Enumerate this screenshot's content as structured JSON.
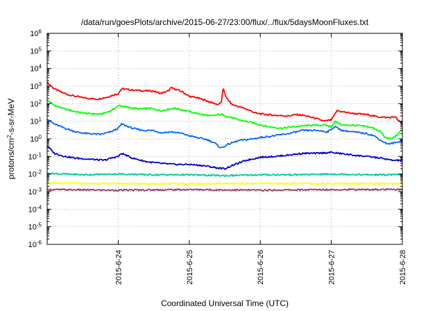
{
  "chart_data": {
    "type": "line",
    "title": "/data/run/goesPlots/archive/2015-06-27/23:00/flux/../flux/5daysMoonFluxes.txt",
    "xlabel": "Coordinated Universal Time (UTC)",
    "ylabel": {
      "base": "protons/cm",
      "sup": "2",
      "rest": "-s-sr-MeV"
    },
    "xlim": [
      0,
      5
    ],
    "x_ticks": [
      {
        "x": 1,
        "label": "2015-6-24"
      },
      {
        "x": 2,
        "label": "2015-6-25"
      },
      {
        "x": 3,
        "label": "2015-6-26"
      },
      {
        "x": 4,
        "label": "2015-6-27"
      },
      {
        "x": 5,
        "label": "2015-6-28"
      }
    ],
    "y_scale": "log",
    "ylim": [
      1e-06,
      1000000.0
    ],
    "y_ticks": [
      {
        "v": 1e-06,
        "base": "10",
        "exp": "-6"
      },
      {
        "v": 1e-05,
        "base": "10",
        "exp": "-5"
      },
      {
        "v": 0.0001,
        "base": "10",
        "exp": "-4"
      },
      {
        "v": 0.001,
        "base": "10",
        "exp": "-3"
      },
      {
        "v": 0.01,
        "base": "10",
        "exp": "-2"
      },
      {
        "v": 0.1,
        "base": "10",
        "exp": "-1"
      },
      {
        "v": 1,
        "base": "10",
        "exp": "0"
      },
      {
        "v": 10,
        "base": "10",
        "exp": "1"
      },
      {
        "v": 100,
        "base": "10",
        "exp": "2"
      },
      {
        "v": 1000,
        "base": "10",
        "exp": "3"
      },
      {
        "v": 10000,
        "base": "10",
        "exp": "4"
      },
      {
        "v": 100000,
        "base": "10",
        "exp": "5"
      },
      {
        "v": 1000000,
        "base": "10",
        "exp": "6"
      }
    ],
    "grid": "dotted",
    "series": [
      {
        "color": "#ff0000",
        "points": [
          [
            0,
            1600
          ],
          [
            0.1,
            700
          ],
          [
            0.2,
            450
          ],
          [
            0.3,
            320
          ],
          [
            0.5,
            220
          ],
          [
            0.7,
            180
          ],
          [
            0.85,
            240
          ],
          [
            1.0,
            380
          ],
          [
            1.05,
            700
          ],
          [
            1.2,
            600
          ],
          [
            1.35,
            540
          ],
          [
            1.5,
            520
          ],
          [
            1.6,
            380
          ],
          [
            1.7,
            520
          ],
          [
            1.75,
            800
          ],
          [
            1.9,
            480
          ],
          [
            2.0,
            260
          ],
          [
            2.1,
            220
          ],
          [
            2.2,
            170
          ],
          [
            2.3,
            120
          ],
          [
            2.4,
            90
          ],
          [
            2.45,
            110
          ],
          [
            2.48,
            800
          ],
          [
            2.52,
            220
          ],
          [
            2.6,
            90
          ],
          [
            2.8,
            50
          ],
          [
            2.95,
            28
          ],
          [
            3.05,
            25
          ],
          [
            3.2,
            22
          ],
          [
            3.4,
            20
          ],
          [
            3.5,
            24
          ],
          [
            3.6,
            22
          ],
          [
            3.8,
            14
          ],
          [
            3.9,
            10
          ],
          [
            4.0,
            12
          ],
          [
            4.08,
            40
          ],
          [
            4.15,
            35
          ],
          [
            4.3,
            28
          ],
          [
            4.5,
            24
          ],
          [
            4.65,
            18
          ],
          [
            4.8,
            16
          ],
          [
            4.9,
            18
          ],
          [
            4.95,
            10
          ],
          [
            5.0,
            8
          ]
        ]
      },
      {
        "color": "#00ff00",
        "points": [
          [
            0,
            160
          ],
          [
            0.1,
            80
          ],
          [
            0.25,
            50
          ],
          [
            0.4,
            35
          ],
          [
            0.55,
            28
          ],
          [
            0.75,
            25
          ],
          [
            0.9,
            40
          ],
          [
            1.02,
            80
          ],
          [
            1.15,
            60
          ],
          [
            1.3,
            50
          ],
          [
            1.45,
            55
          ],
          [
            1.6,
            40
          ],
          [
            1.72,
            50
          ],
          [
            1.8,
            55
          ],
          [
            1.95,
            40
          ],
          [
            2.1,
            28
          ],
          [
            2.3,
            20
          ],
          [
            2.45,
            25
          ],
          [
            2.55,
            18
          ],
          [
            2.7,
            12
          ],
          [
            2.9,
            8
          ],
          [
            3.1,
            5
          ],
          [
            3.3,
            4
          ],
          [
            3.5,
            5
          ],
          [
            3.7,
            6
          ],
          [
            3.9,
            6
          ],
          [
            4.0,
            5
          ],
          [
            4.05,
            10
          ],
          [
            4.15,
            6
          ],
          [
            4.3,
            6
          ],
          [
            4.5,
            5
          ],
          [
            4.6,
            4
          ],
          [
            4.7,
            2.5
          ],
          [
            4.75,
            1.2
          ],
          [
            4.85,
            1.0
          ],
          [
            4.95,
            2.0
          ],
          [
            5.0,
            3.5
          ]
        ]
      },
      {
        "color": "#0066ff",
        "points": [
          [
            0,
            14
          ],
          [
            0.1,
            7
          ],
          [
            0.25,
            4
          ],
          [
            0.4,
            2.5
          ],
          [
            0.55,
            2
          ],
          [
            0.75,
            1.8
          ],
          [
            0.9,
            2.5
          ],
          [
            1.0,
            4
          ],
          [
            1.05,
            7
          ],
          [
            1.2,
            4
          ],
          [
            1.35,
            3
          ],
          [
            1.5,
            3
          ],
          [
            1.6,
            2.2
          ],
          [
            1.75,
            2.5
          ],
          [
            1.9,
            2
          ],
          [
            2.0,
            1.5
          ],
          [
            2.1,
            1.2
          ],
          [
            2.25,
            0.9
          ],
          [
            2.35,
            0.6
          ],
          [
            2.45,
            0.3
          ],
          [
            2.55,
            0.5
          ],
          [
            2.7,
            0.8
          ],
          [
            2.9,
            1.0
          ],
          [
            3.0,
            1.2
          ],
          [
            3.2,
            1.5
          ],
          [
            3.4,
            2
          ],
          [
            3.6,
            3
          ],
          [
            3.8,
            3
          ],
          [
            3.95,
            2.5
          ],
          [
            4.05,
            5
          ],
          [
            4.15,
            3
          ],
          [
            4.3,
            2.5
          ],
          [
            4.5,
            2
          ],
          [
            4.6,
            1.5
          ],
          [
            4.7,
            0.8
          ],
          [
            4.8,
            0.5
          ],
          [
            4.9,
            0.6
          ],
          [
            5.0,
            0.8
          ]
        ]
      },
      {
        "color": "#0000cc",
        "points": [
          [
            0,
            0.4
          ],
          [
            0.1,
            0.15
          ],
          [
            0.25,
            0.1
          ],
          [
            0.4,
            0.08
          ],
          [
            0.6,
            0.07
          ],
          [
            0.8,
            0.06
          ],
          [
            0.9,
            0.08
          ],
          [
            1.0,
            0.1
          ],
          [
            1.05,
            0.15
          ],
          [
            1.2,
            0.08
          ],
          [
            1.4,
            0.05
          ],
          [
            1.6,
            0.04
          ],
          [
            1.8,
            0.035
          ],
          [
            2.0,
            0.035
          ],
          [
            2.2,
            0.03
          ],
          [
            2.4,
            0.022
          ],
          [
            2.5,
            0.02
          ],
          [
            2.6,
            0.03
          ],
          [
            2.8,
            0.06
          ],
          [
            3.0,
            0.09
          ],
          [
            3.2,
            0.1
          ],
          [
            3.4,
            0.12
          ],
          [
            3.6,
            0.15
          ],
          [
            3.8,
            0.15
          ],
          [
            4.0,
            0.17
          ],
          [
            4.1,
            0.15
          ],
          [
            4.3,
            0.12
          ],
          [
            4.5,
            0.1
          ],
          [
            4.7,
            0.08
          ],
          [
            4.85,
            0.06
          ],
          [
            5.0,
            0.06
          ]
        ]
      },
      {
        "color": "#00cc99",
        "points": [
          [
            0,
            0.011
          ],
          [
            0.5,
            0.009
          ],
          [
            1.0,
            0.01
          ],
          [
            1.5,
            0.009
          ],
          [
            2.0,
            0.009
          ],
          [
            2.5,
            0.008
          ],
          [
            3.0,
            0.009
          ],
          [
            3.5,
            0.009
          ],
          [
            4.0,
            0.01
          ],
          [
            4.5,
            0.009
          ],
          [
            5.0,
            0.009
          ]
        ]
      },
      {
        "color": "#ffff00",
        "points": [
          [
            0,
            0.003
          ],
          [
            1,
            0.0029
          ],
          [
            2,
            0.0028
          ],
          [
            3,
            0.0029
          ],
          [
            4,
            0.0029
          ],
          [
            5,
            0.0028
          ]
        ]
      },
      {
        "color": "#993366",
        "points": [
          [
            0,
            0.0013
          ],
          [
            1,
            0.0012
          ],
          [
            2,
            0.0013
          ],
          [
            3,
            0.0012
          ],
          [
            4,
            0.0013
          ],
          [
            5,
            0.0013
          ]
        ]
      }
    ]
  }
}
